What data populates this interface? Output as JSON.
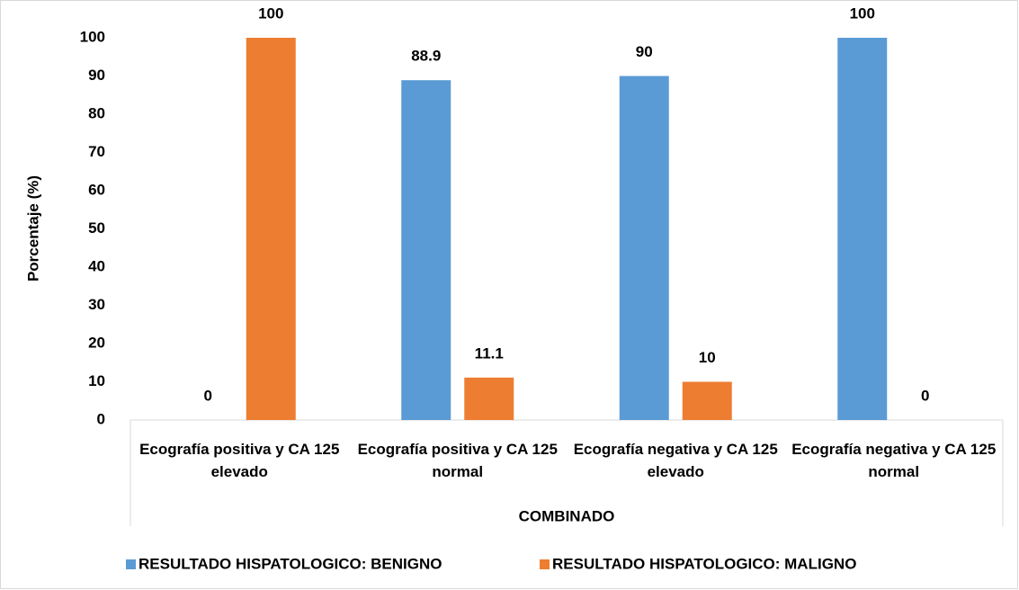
{
  "chart_data": {
    "type": "bar",
    "y_label": "Porcentaje (%)",
    "x_label": "COMBINADO",
    "categories": [
      "Ecografía positiva y CA 125 elevado",
      "Ecografía positiva y CA 125 normal",
      "Ecografía negativa y CA 125 elevado",
      "Ecografía negativa y CA 125 normal"
    ],
    "series": [
      {
        "name": "RESULTADO HISPATOLOGICO: BENIGNO",
        "color": "#5b9bd5",
        "values": [
          0,
          88.9,
          90,
          100
        ]
      },
      {
        "name": "RESULTADO HISPATOLOGICO: MALIGNO",
        "color": "#ed7d31",
        "values": [
          100,
          11.1,
          10,
          0
        ]
      }
    ],
    "ylim": [
      0,
      100
    ],
    "yticks": [
      0,
      10,
      20,
      30,
      40,
      50,
      60,
      70,
      80,
      90,
      100
    ],
    "grid": false,
    "legend": "bottom"
  }
}
